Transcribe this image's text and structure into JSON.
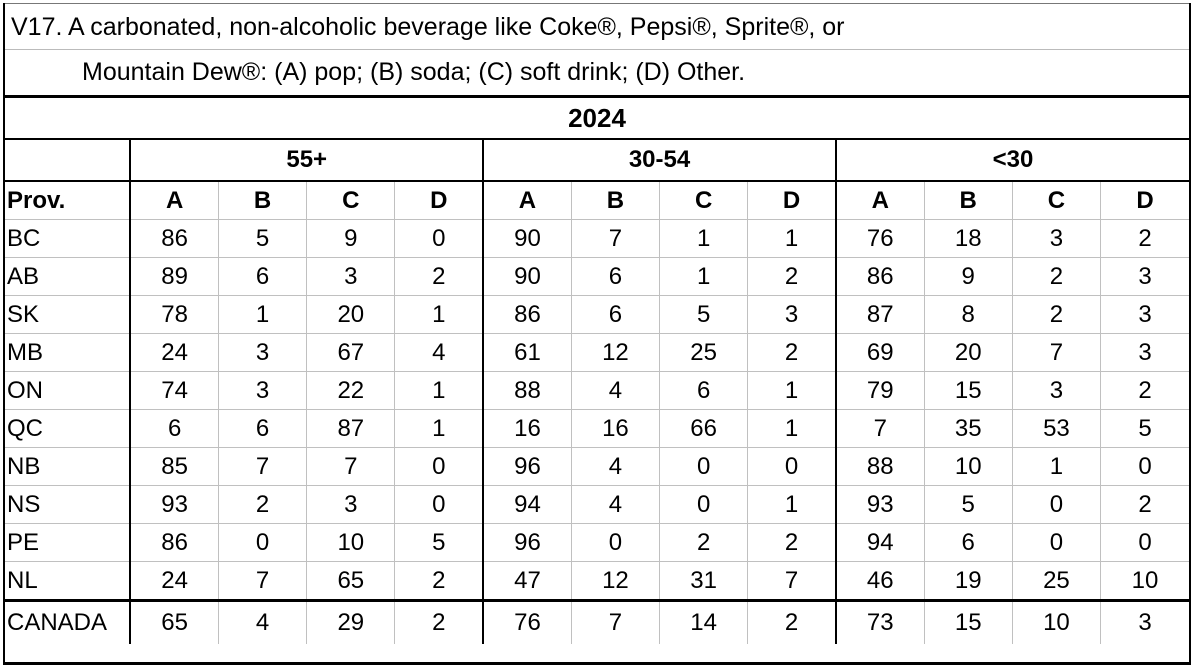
{
  "question": {
    "line1": "V17. A carbonated, non-alcoholic beverage like Coke®, Pepsi®, Sprite®, or",
    "line2": "Mountain Dew®: (A) pop; (B) soda; (C) soft drink; (D) Other."
  },
  "year": "2024",
  "age_groups": [
    "55+",
    "30-54",
    "<30"
  ],
  "prov_header": "Prov.",
  "answer_codes": [
    "A",
    "B",
    "C",
    "D"
  ],
  "rows": [
    {
      "prov": "BC",
      "values": [
        86,
        5,
        9,
        0,
        90,
        7,
        1,
        1,
        76,
        18,
        3,
        2
      ]
    },
    {
      "prov": "AB",
      "values": [
        89,
        6,
        3,
        2,
        90,
        6,
        1,
        2,
        86,
        9,
        2,
        3
      ]
    },
    {
      "prov": "SK",
      "values": [
        78,
        1,
        20,
        1,
        86,
        6,
        5,
        3,
        87,
        8,
        2,
        3
      ]
    },
    {
      "prov": "MB",
      "values": [
        24,
        3,
        67,
        4,
        61,
        12,
        25,
        2,
        69,
        20,
        7,
        3
      ]
    },
    {
      "prov": "ON",
      "values": [
        74,
        3,
        22,
        1,
        88,
        4,
        6,
        1,
        79,
        15,
        3,
        2
      ]
    },
    {
      "prov": "QC",
      "values": [
        6,
        6,
        87,
        1,
        16,
        16,
        66,
        1,
        7,
        35,
        53,
        5
      ]
    },
    {
      "prov": "NB",
      "values": [
        85,
        7,
        7,
        0,
        96,
        4,
        0,
        0,
        88,
        10,
        1,
        0
      ]
    },
    {
      "prov": "NS",
      "values": [
        93,
        2,
        3,
        0,
        94,
        4,
        0,
        1,
        93,
        5,
        0,
        2
      ]
    },
    {
      "prov": "PE",
      "values": [
        86,
        0,
        10,
        5,
        96,
        0,
        2,
        2,
        94,
        6,
        0,
        0
      ]
    },
    {
      "prov": "NL",
      "values": [
        24,
        7,
        65,
        2,
        47,
        12,
        31,
        7,
        46,
        19,
        25,
        10
      ]
    }
  ],
  "total": {
    "prov": "CANADA",
    "values": [
      65,
      4,
      29,
      2,
      76,
      7,
      14,
      2,
      73,
      15,
      10,
      3
    ]
  }
}
